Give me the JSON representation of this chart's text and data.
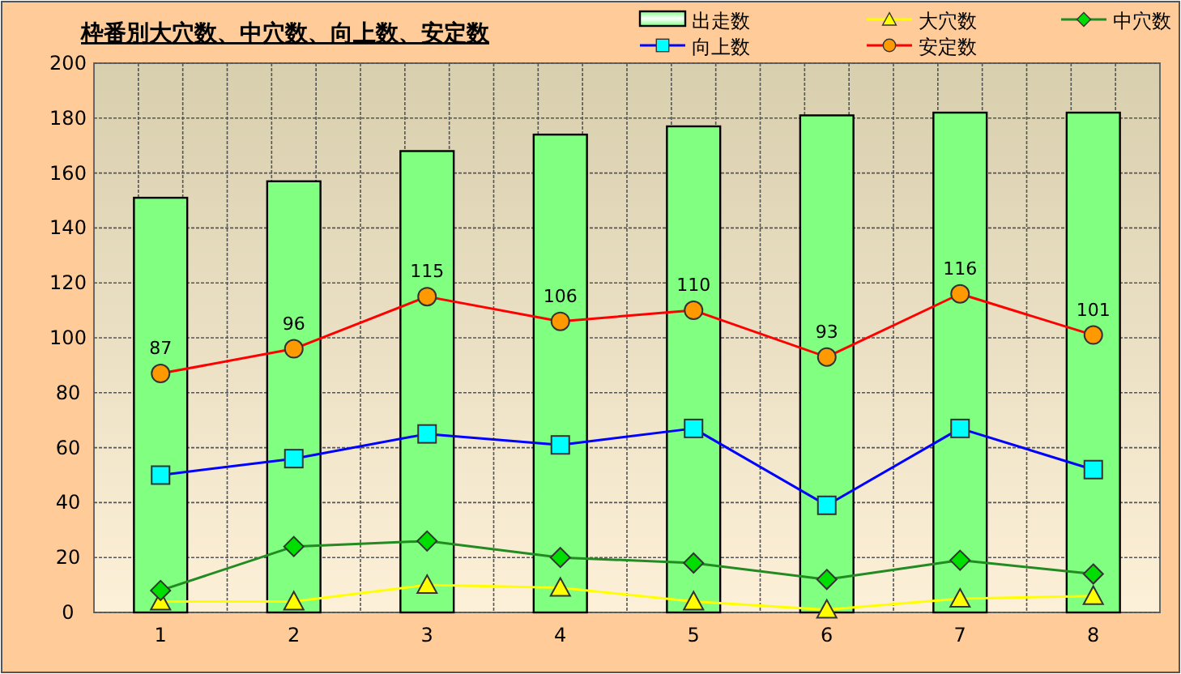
{
  "chart_data": {
    "type": "bar",
    "title": "枠番別大穴数、中穴数、向上数、安定数",
    "categories": [
      "1",
      "2",
      "3",
      "4",
      "5",
      "6",
      "7",
      "8"
    ],
    "series": [
      {
        "name": "出走数",
        "color": "#80ff80",
        "values": [
          151,
          157,
          168,
          174,
          177,
          181,
          182,
          182
        ]
      },
      {
        "name": "大穴数",
        "type": "line",
        "color": "#ffff00",
        "marker": "triangle",
        "values": [
          4,
          4,
          10,
          9,
          4,
          1,
          5,
          6
        ]
      },
      {
        "name": "中穴数",
        "type": "line",
        "color": "#228b22",
        "marker": "diamond",
        "values": [
          8,
          24,
          26,
          20,
          18,
          12,
          19,
          14
        ]
      },
      {
        "name": "向上数",
        "type": "line",
        "color": "#0000ff",
        "marker": "square",
        "values": [
          50,
          56,
          65,
          61,
          67,
          39,
          67,
          52
        ]
      },
      {
        "name": "安定数",
        "type": "line",
        "color": "#ff0000",
        "marker": "circle",
        "values": [
          87,
          96,
          115,
          106,
          110,
          93,
          116,
          101
        ],
        "value_labels": [
          "87",
          "96",
          "115",
          "106",
          "110",
          "93",
          "116",
          "101"
        ]
      }
    ],
    "ylim": [
      0,
      200
    ],
    "yticks": [
      0,
      20,
      40,
      60,
      80,
      100,
      120,
      140,
      160,
      180,
      200
    ],
    "grid": true,
    "legend": "top right"
  }
}
